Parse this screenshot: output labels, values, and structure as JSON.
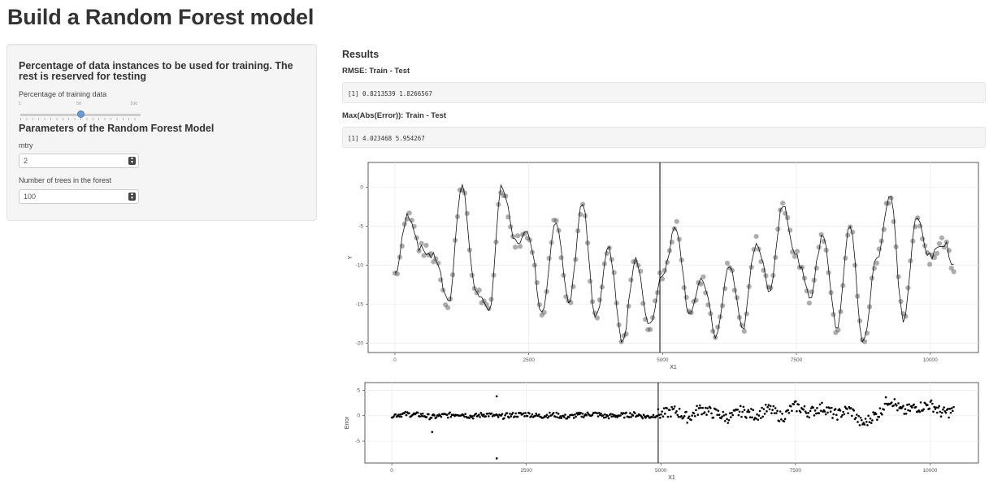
{
  "page": {
    "title": "Build a Random Forest model"
  },
  "sidebar": {
    "train_heading": "Percentage of data instances to be used for training. The rest is reserved for testing",
    "slider": {
      "label": "Percentage of training data",
      "min": "1",
      "mid": "50",
      "max": "100",
      "value_pct": 50
    },
    "params_heading": "Parameters of the Random Forest Model",
    "mtry": {
      "label": "mtry",
      "value": "2"
    },
    "ntree": {
      "label": "Number of trees in the forest",
      "value": "100"
    }
  },
  "results": {
    "title": "Results",
    "rmse": {
      "label": "RMSE: Train - Test",
      "output": "[1] 0.8213539 1.8266567"
    },
    "maxerr": {
      "label": "Max(Abs(Error)): Train - Test",
      "output": "[1] 4.023468 5.954267"
    }
  },
  "chart_data": [
    {
      "type": "scatter",
      "xlabel": "X1",
      "ylabel": "Y",
      "xticks": [
        "0",
        "2500",
        "5000",
        "7500",
        "10000"
      ],
      "yticks": [
        "0",
        "-5",
        "-10",
        "-15",
        "-20"
      ],
      "xlim": [
        -500,
        10900
      ],
      "ylim": [
        -21.2,
        3.2
      ],
      "split_x": 4950,
      "series": [
        {
          "role": "observed",
          "style": "grey translucent points"
        },
        {
          "role": "predicted",
          "style": "black line"
        }
      ],
      "x": [
        0,
        250,
        500,
        750,
        1000,
        1250,
        1500,
        1750,
        2000,
        2250,
        2500,
        2750,
        3000,
        3250,
        3500,
        3750,
        4000,
        4250,
        4500,
        4750,
        5000,
        5250,
        5500,
        5750,
        6000,
        6250,
        6500,
        6750,
        7000,
        7250,
        7500,
        7750,
        8000,
        8250,
        8500,
        8750,
        9000,
        9250,
        9500,
        9750,
        10000,
        10250,
        10500
      ],
      "y": [
        -11,
        -3.5,
        -8,
        -9,
        -15,
        0.5,
        -13,
        -16,
        0,
        -7,
        -6,
        -16,
        -4,
        -15,
        -2,
        -17,
        -8,
        -20,
        -9,
        -18,
        -11,
        -5,
        -16,
        -12,
        -19,
        -10,
        -18,
        -7,
        -13,
        -2,
        -9,
        -14,
        -6,
        -18,
        -5,
        -20,
        -9,
        -1,
        -17,
        -4,
        -9,
        -7,
        -11
      ]
    },
    {
      "type": "scatter",
      "xlabel": "X1",
      "ylabel": "Error",
      "xticks": [
        "0",
        "2500",
        "5000",
        "7500",
        "10000"
      ],
      "yticks": [
        "5",
        "0",
        "-5"
      ],
      "xlim": [
        -500,
        10900
      ],
      "ylim": [
        -9.3,
        6.5
      ],
      "split_x": 4950,
      "series": [
        {
          "role": "residuals",
          "style": "black points"
        }
      ],
      "x": [
        0,
        250,
        500,
        750,
        1000,
        1250,
        1500,
        1750,
        2000,
        2250,
        2500,
        2750,
        3000,
        3250,
        3500,
        3750,
        4000,
        4250,
        4500,
        4750,
        5000,
        5250,
        5500,
        5750,
        6000,
        6250,
        6500,
        6750,
        7000,
        7250,
        7500,
        7750,
        8000,
        8250,
        8500,
        8750,
        9000,
        9250,
        9500,
        9750,
        10000,
        10250,
        10500
      ],
      "y": [
        0.2,
        0.5,
        0.3,
        -0.4,
        0.1,
        0.6,
        -0.2,
        0.4,
        -0.3,
        0.2,
        0.5,
        -0.1,
        0.3,
        -0.4,
        0.2,
        0.6,
        -0.2,
        0.1,
        0.4,
        -0.3,
        0.5,
        1.5,
        -0.5,
        2.2,
        0.8,
        -0.6,
        1.4,
        0.3,
        2.0,
        -0.3,
        3.0,
        1.2,
        2.6,
        0.4,
        1.8,
        -2.5,
        0.2,
        5.2,
        1.5,
        2.8,
        3.5,
        1.0,
        1.5
      ],
      "outliers": [
        {
          "x": 1950,
          "y": -8.4
        },
        {
          "x": 750,
          "y": -3.2
        },
        {
          "x": 1950,
          "y": 3.8
        }
      ]
    }
  ]
}
